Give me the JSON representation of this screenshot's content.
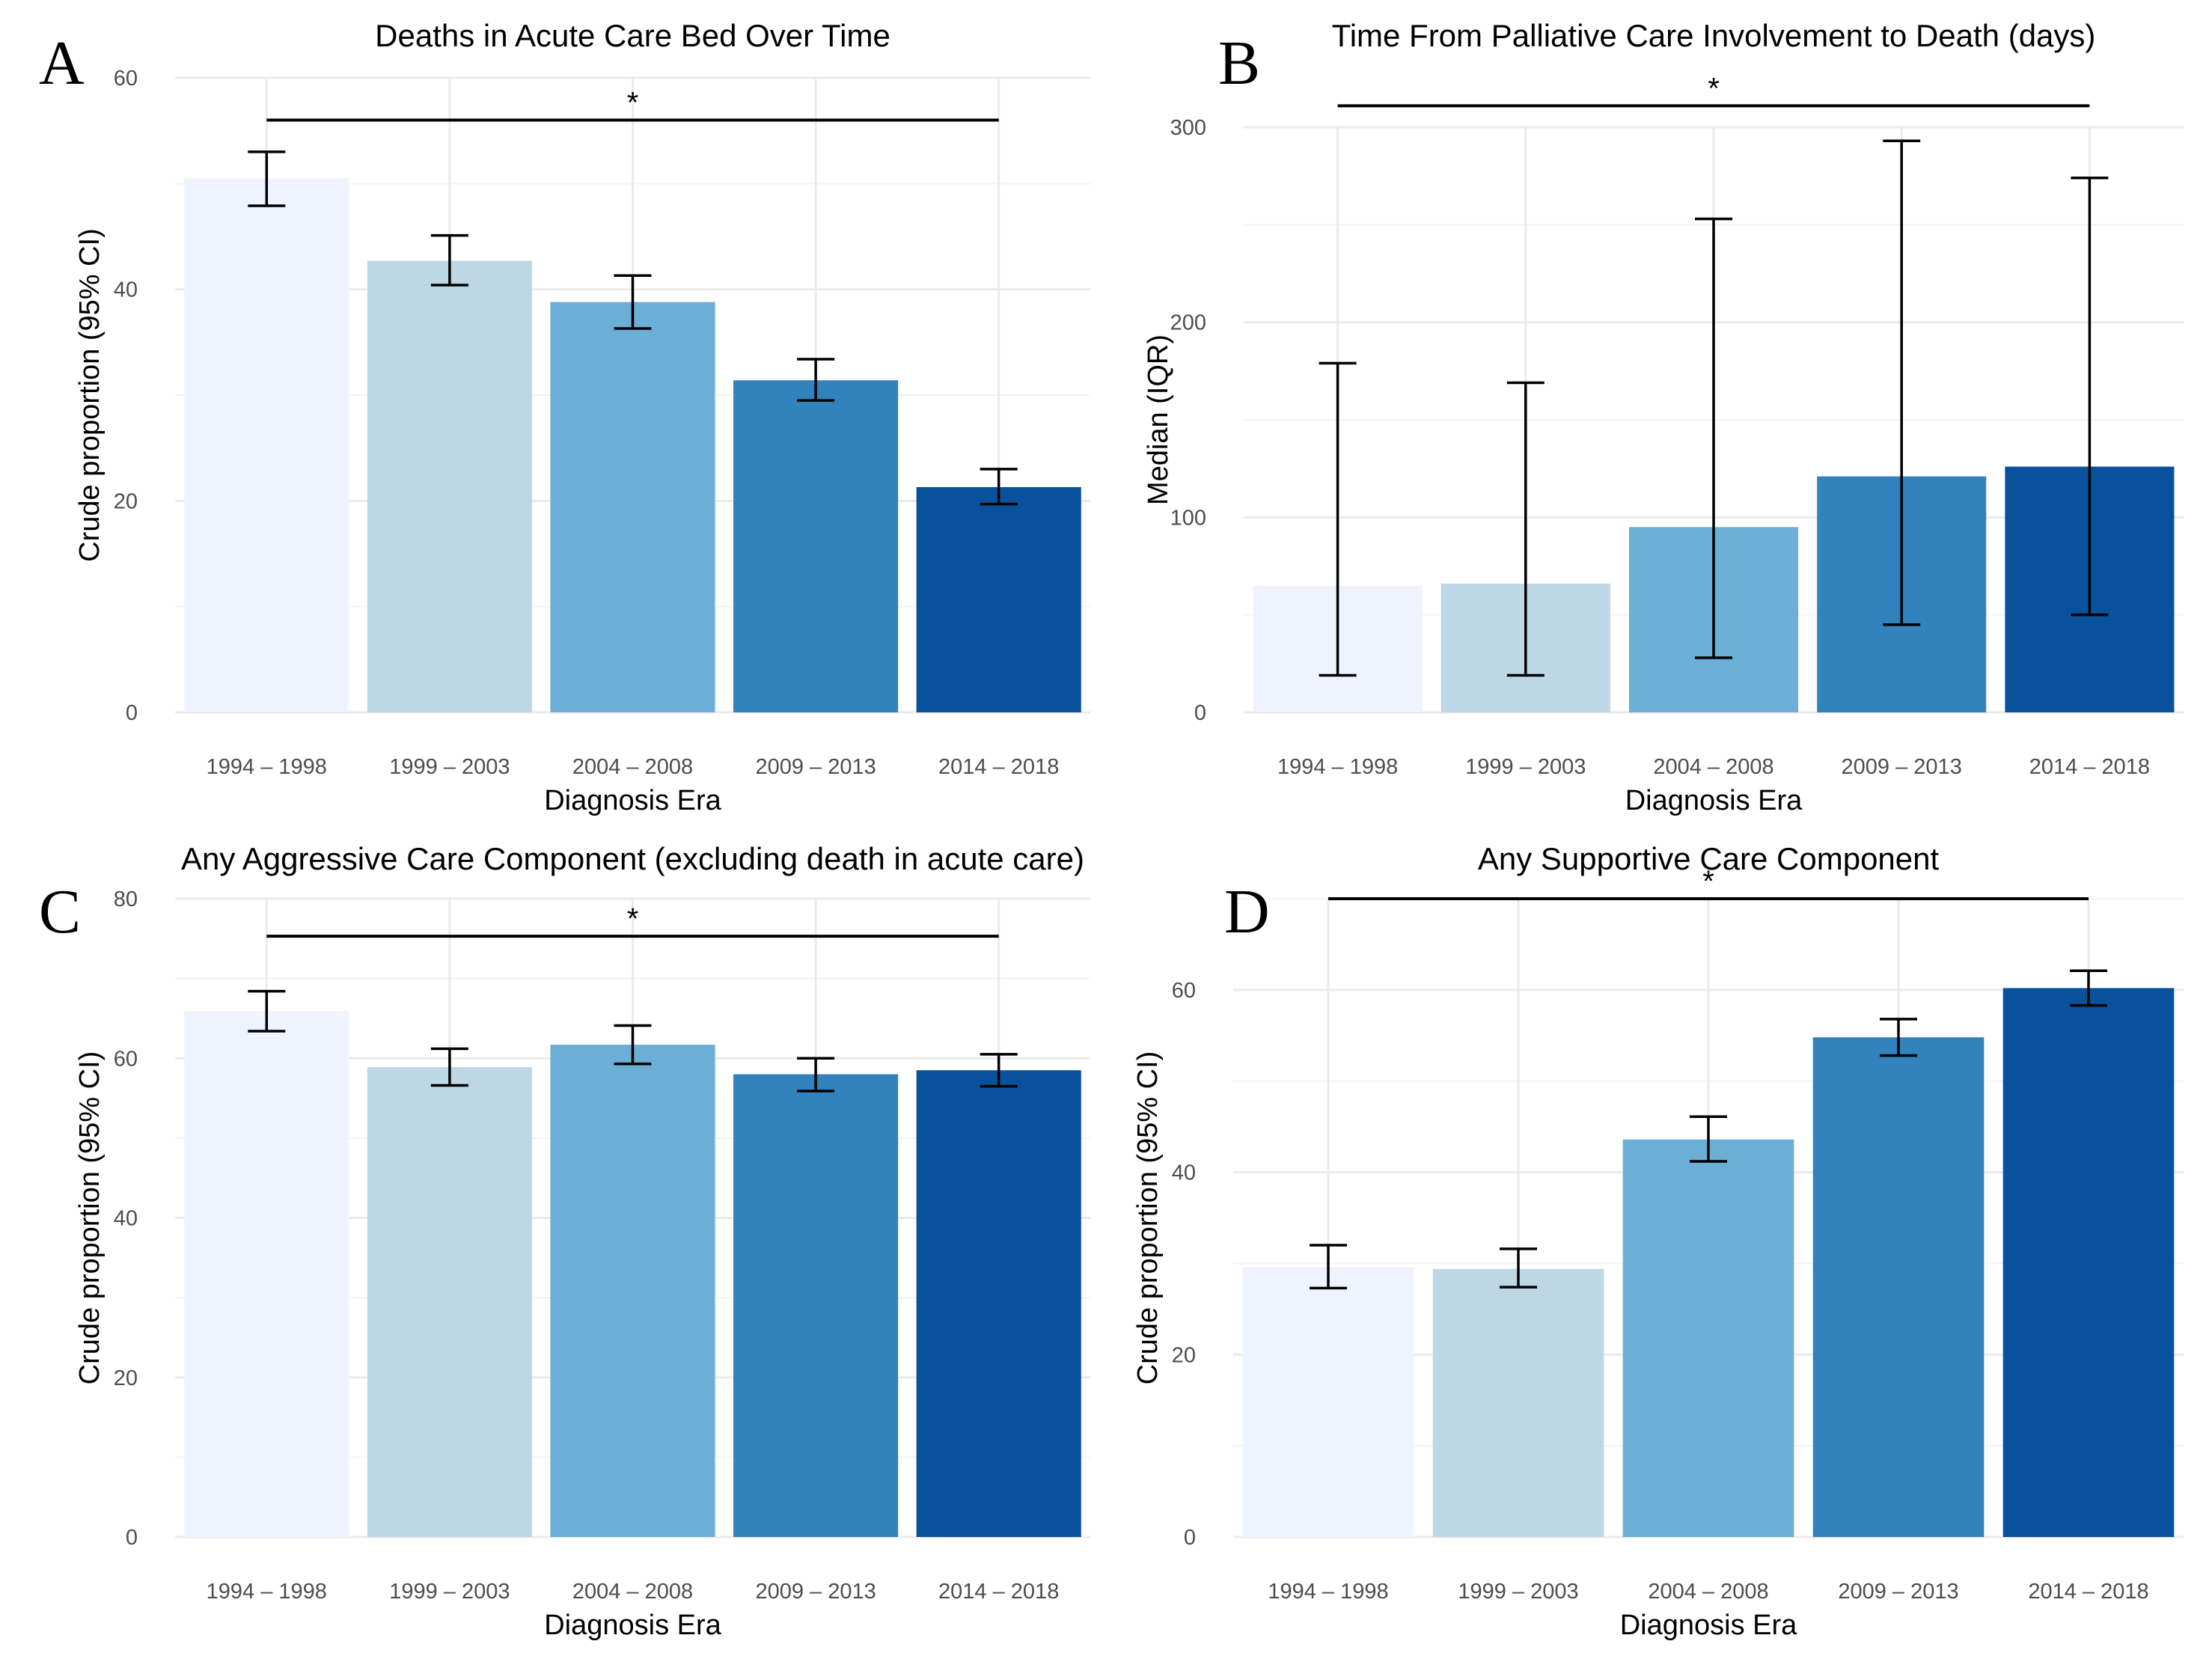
{
  "chart_data": [
    {
      "panel": "A",
      "type": "bar",
      "title": "Deaths in Acute Care Bed Over Time",
      "xlabel": "Diagnosis Era",
      "ylabel": "Crude proportion (95% CI)",
      "categories": [
        "1994 – 1998",
        "1999 – 2003",
        "2004 – 2008",
        "2009 – 2013",
        "2014 – 2018"
      ],
      "values": [
        50.5,
        42.7,
        38.8,
        31.4,
        21.3
      ],
      "error_low": [
        47.9,
        40.4,
        36.3,
        29.5,
        19.7
      ],
      "error_high": [
        53.0,
        45.1,
        41.3,
        33.4,
        23.0
      ],
      "ylim": [
        0,
        60
      ],
      "yticks": [
        0,
        20,
        40,
        60
      ],
      "significance": {
        "label": "*",
        "value": 56,
        "from": 0,
        "to": 4
      },
      "grid": true,
      "legend": "none"
    },
    {
      "panel": "B",
      "type": "bar",
      "title": "Time From Palliative Care Involvement to Death (days)",
      "xlabel": "Diagnosis Era",
      "ylabel": "Median (IQR)",
      "categories": [
        "1994 – 1998",
        "1999 – 2003",
        "2004 – 2008",
        "2009 – 2013",
        "2014 – 2018"
      ],
      "values": [
        65,
        66,
        95,
        121,
        126
      ],
      "error_low": [
        19,
        19,
        28,
        45,
        50
      ],
      "error_high": [
        179,
        169,
        253,
        293,
        274
      ],
      "ylim": [
        0,
        300
      ],
      "yticks": [
        0,
        100,
        200,
        300
      ],
      "significance": {
        "label": "*",
        "value": 311,
        "from": 0,
        "to": 4
      },
      "grid": true,
      "legend": "none"
    },
    {
      "panel": "C",
      "type": "bar",
      "title": "Any Aggressive Care Component (excluding death in acute care)",
      "xlabel": "Diagnosis Era",
      "ylabel": "Crude proportion (95% CI)",
      "categories": [
        "1994 – 1998",
        "1999 – 2003",
        "2004 – 2008",
        "2009 – 2013",
        "2014 – 2018"
      ],
      "values": [
        65.9,
        58.9,
        61.7,
        58.0,
        58.5
      ],
      "error_low": [
        63.4,
        56.6,
        59.3,
        55.9,
        56.5
      ],
      "error_high": [
        68.4,
        61.2,
        64.1,
        60.0,
        60.5
      ],
      "ylim": [
        0,
        80
      ],
      "yticks": [
        0,
        20,
        40,
        60,
        80
      ],
      "significance": {
        "label": "*",
        "value": 75.3,
        "from": 0,
        "to": 4
      },
      "grid": true,
      "legend": "none"
    },
    {
      "panel": "D",
      "type": "bar",
      "title": "Any Supportive Care Component",
      "xlabel": "Diagnosis Era",
      "ylabel": "Crude proportion (95% CI)",
      "categories": [
        "1994 – 1998",
        "1999 – 2003",
        "2004 – 2008",
        "2009 – 2013",
        "2014 – 2018"
      ],
      "values": [
        29.6,
        29.4,
        43.6,
        54.8,
        60.2
      ],
      "error_low": [
        27.3,
        27.4,
        41.2,
        52.8,
        58.3
      ],
      "error_high": [
        32.0,
        31.6,
        46.1,
        56.8,
        62.1
      ],
      "ylim": [
        0,
        70
      ],
      "yticks": [
        0,
        20,
        40,
        60
      ],
      "significance": {
        "label": "*",
        "value": 70,
        "from": 0,
        "to": 4
      },
      "grid": true,
      "legend": "none"
    }
  ],
  "colors": [
    "#eff3ff",
    "#bdd7e7",
    "#6baed6",
    "#3182bd",
    "#08519c"
  ]
}
